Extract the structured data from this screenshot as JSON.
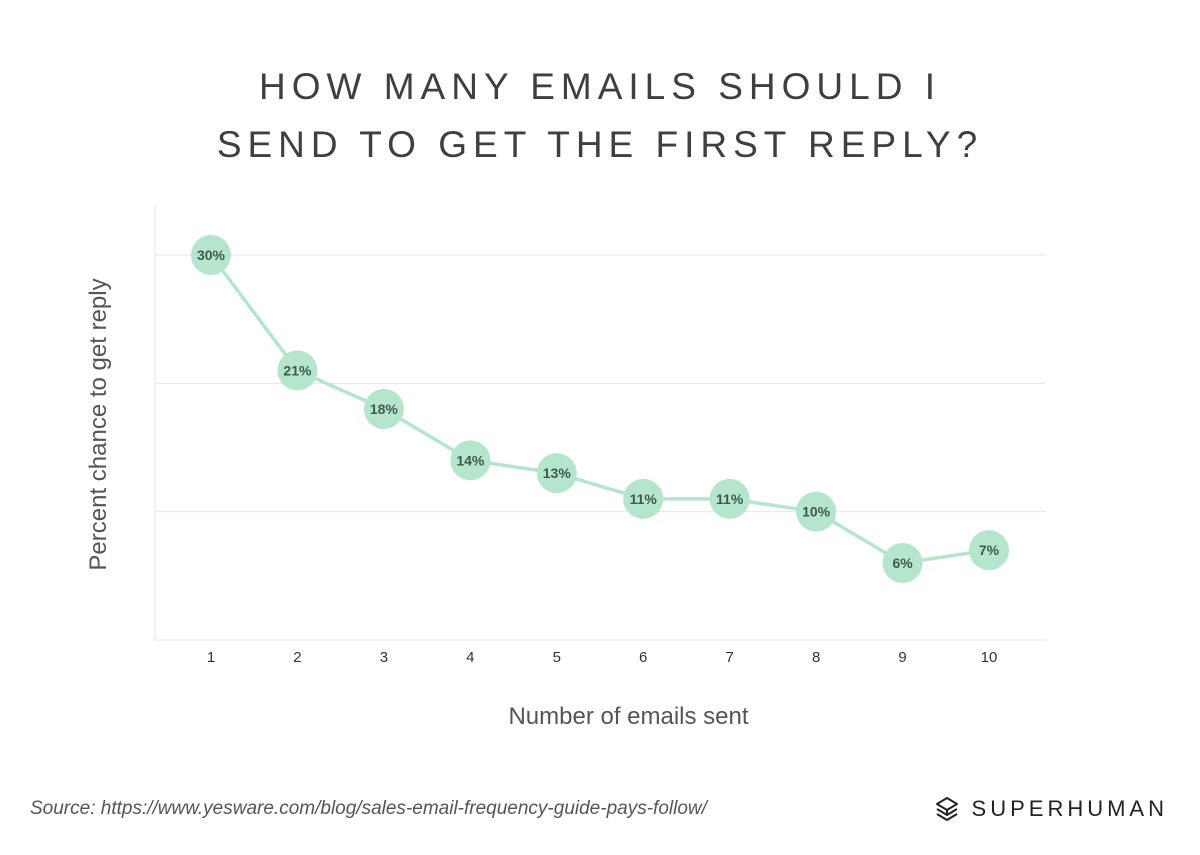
{
  "title_line1": "HOW MANY EMAILS SHOULD I",
  "title_line2": "SEND TO GET THE FIRST REPLY?",
  "source": "Source: https://www.yesware.com/blog/sales-email-frequency-guide-pays-follow/",
  "brand": "SUPERHUMAN",
  "colors": {
    "marker": "#b5e5cd",
    "line": "#b5e5cd",
    "label": "#3e5a4c",
    "grid": "#e6e6e6",
    "axis_text": "#555555"
  },
  "chart_data": {
    "type": "line",
    "title": "HOW MANY EMAILS SHOULD I SEND TO GET THE FIRST REPLY?",
    "xlabel": "Number of emails sent",
    "ylabel": "Percent chance to get reply",
    "x": [
      1,
      2,
      3,
      4,
      5,
      6,
      7,
      8,
      9,
      10
    ],
    "values": [
      30,
      21,
      18,
      14,
      13,
      11,
      11,
      10,
      6,
      7
    ],
    "data_labels": [
      "30%",
      "21%",
      "18%",
      "14%",
      "13%",
      "11%",
      "11%",
      "10%",
      "6%",
      "7%"
    ],
    "ylim": [
      0,
      30
    ],
    "yticks_grid": [
      10,
      20,
      30
    ],
    "grid": true,
    "legend": "none"
  }
}
